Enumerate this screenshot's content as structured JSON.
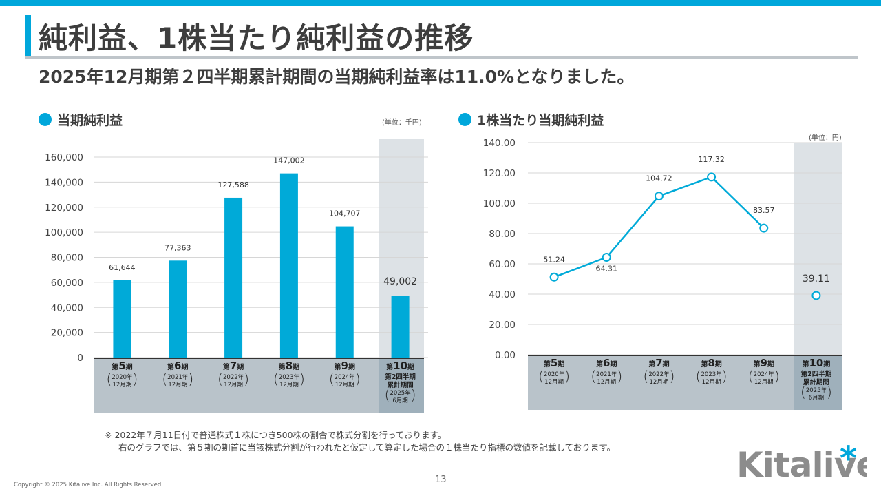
{
  "header": {
    "title": "純利益、1株当たり純利益の推移",
    "subtitle": "2025年12月期第２四半期累計期間の当期純利益率は11.0%となりました。"
  },
  "left_section": {
    "heading": "当期純利益",
    "unit": "(単位：千円)"
  },
  "right_section": {
    "heading": "1株当たり当期純利益",
    "unit": "(単位：円)"
  },
  "chart_data": [
    {
      "type": "bar",
      "title": "当期純利益",
      "unit": "(単位：千円)",
      "categories": [
        "第5期 2020年12月期",
        "第6期 2021年12月期",
        "第7期 2022年12月期",
        "第8期 2023年12月期",
        "第9期 2024年12月期",
        "第10期 第2四半期累計期間 2025年6月期"
      ],
      "values": [
        61644,
        77363,
        127588,
        147002,
        104707,
        49002
      ],
      "value_labels": [
        "61,644",
        "77,363",
        "127,588",
        "147,002",
        "104,707",
        "49,002"
      ],
      "yticks": [
        "0",
        "20,000",
        "40,000",
        "60,000",
        "80,000",
        "100,000",
        "120,000",
        "140,000",
        "160,000"
      ],
      "ylim": [
        0,
        160000
      ],
      "grid": true,
      "highlight_last": true
    },
    {
      "type": "line",
      "title": "1株当たり当期純利益",
      "unit": "(単位：円)",
      "categories": [
        "第5期 2020年12月期",
        "第6期 2021年12月期",
        "第7期 2022年12月期",
        "第8期 2023年12月期",
        "第9期 2024年12月期",
        "第10期 第2四半期累計期間 2025年6月期"
      ],
      "values": [
        51.24,
        64.31,
        104.72,
        117.32,
        83.57,
        39.11
      ],
      "value_labels": [
        "51.24",
        "64.31",
        "104.72",
        "117.32",
        "83.57",
        "39.11"
      ],
      "yticks": [
        "0.00",
        "20.00",
        "40.00",
        "60.00",
        "80.00",
        "100.00",
        "120.00",
        "140.00"
      ],
      "ylim": [
        0,
        140
      ],
      "grid": true,
      "last_point_unconnected": true
    }
  ],
  "period_labels": [
    {
      "period": "第5期",
      "num": "5",
      "year": "2020年",
      "month": "12月期"
    },
    {
      "period": "第6期",
      "num": "6",
      "year": "2021年",
      "month": "12月期"
    },
    {
      "period": "第7期",
      "num": "7",
      "year": "2022年",
      "month": "12月期"
    },
    {
      "period": "第8期",
      "num": "8",
      "year": "2023年",
      "month": "12月期"
    },
    {
      "period": "第9期",
      "num": "9",
      "year": "2024年",
      "month": "12月期"
    },
    {
      "period": "第10期",
      "num": "10",
      "sub1": "第2四半期",
      "sub2": "累計期間",
      "year": "2025年",
      "month": "6月期"
    }
  ],
  "period_prefix": "第",
  "period_suffix": "期",
  "footnote": {
    "line1": "※ 2022年７月11日付で普通株式１株につき500株の割合で株式分割を行っております。",
    "line2": "右のグラフでは、第５期の期首に当該株式分割が行われたと仮定して算定した場合の１株当たり指標の数値を記載しております。"
  },
  "footer": {
    "copyright": "Copyright © 2025 Kitalive Inc. All Rights Reserved.",
    "page_number": "13",
    "logo_text": "Kitalive",
    "logo_mark": "*"
  },
  "colors": {
    "accent": "#00a7db",
    "bar": "#00aad8",
    "highlight_col": "#dde2e6",
    "axis_band": "#b9c3ca",
    "axis_band_last": "#9fb0bb",
    "logo_gray": "#8c8c8c"
  }
}
